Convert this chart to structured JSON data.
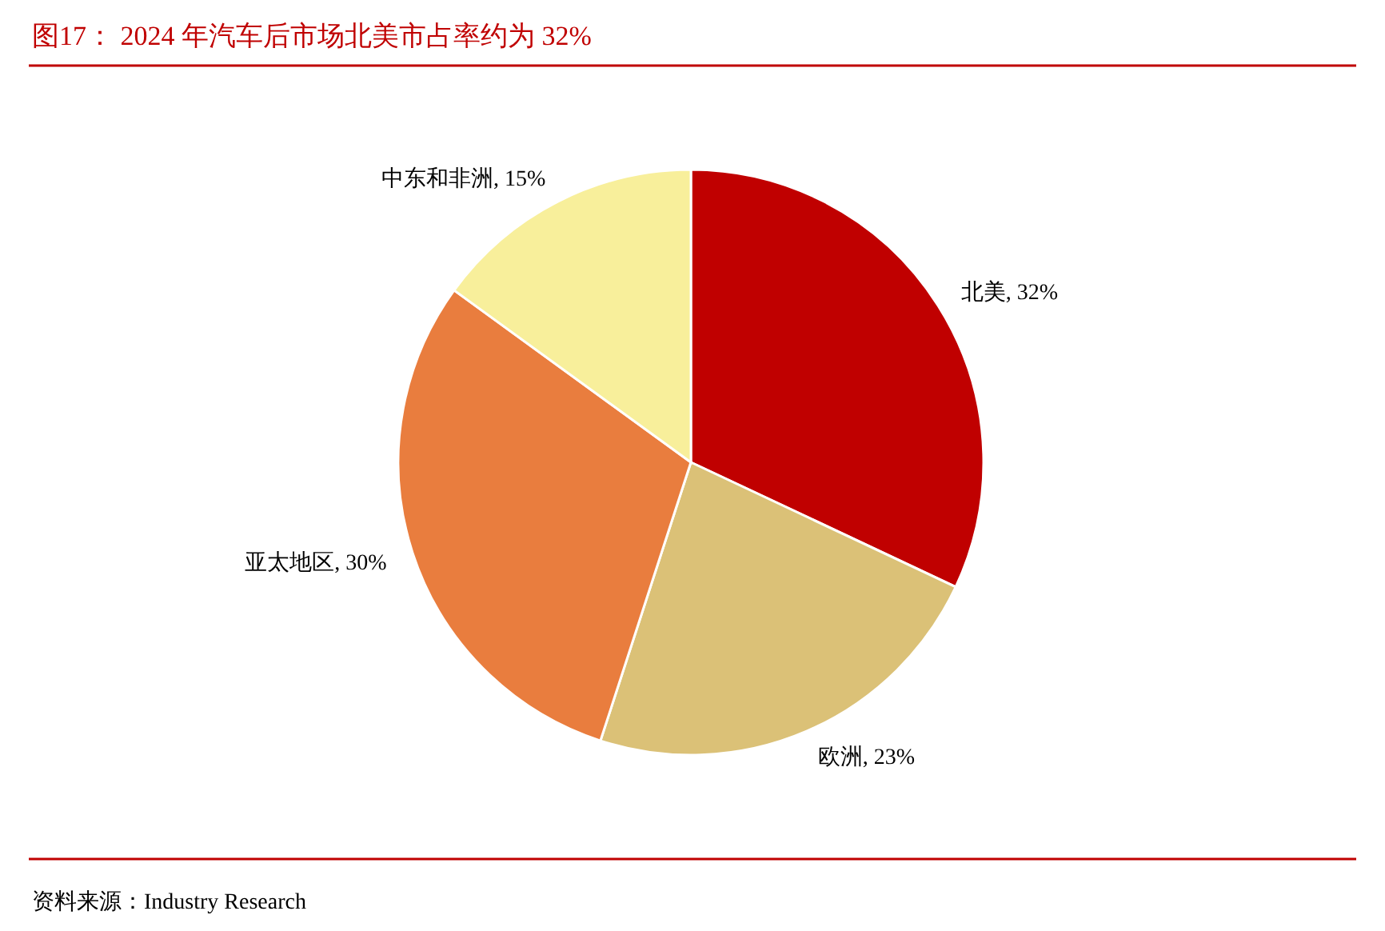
{
  "chart_data": {
    "type": "pie",
    "title": "图17： 2024 年汽车后市场北美市占率约为 32%",
    "categories": [
      "北美",
      "欧洲",
      "亚太地区",
      "中东和非洲"
    ],
    "values": [
      32,
      23,
      30,
      15
    ],
    "colors": [
      "#c00000",
      "#dbc177",
      "#e97d3e",
      "#f8ef9b"
    ],
    "value_labels": [
      ", 32%",
      ", 23%",
      ", 30%",
      ", 15%"
    ],
    "annotations": [
      "资料来源：Industry Research"
    ]
  }
}
